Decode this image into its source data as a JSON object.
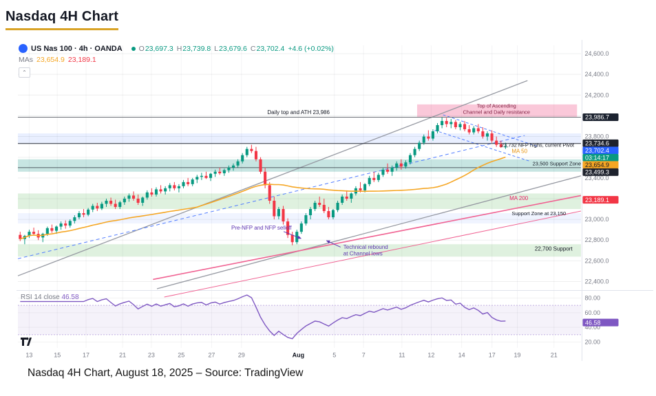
{
  "page": {
    "title": "Nasdaq 4H Chart",
    "caption": "Nasdaq 4H Chart, August 18, 2025 – Source: TradingView",
    "accent_color": "#D9A326"
  },
  "legend": {
    "symbol": "US Nas 100 · 4h · OANDA",
    "ohlc": {
      "o_label": "O",
      "o": "23,697.3",
      "h_label": "H",
      "h": "23,739.8",
      "l_label": "L",
      "l": "23,679.6",
      "c_label": "C",
      "c": "23,702.4",
      "change": "+4.6 (+0.02%)"
    },
    "mas_label": "MAs",
    "ma50_value": "23,654.9",
    "ma200_value": "23,189.1"
  },
  "rsi_pane": {
    "label": "RSI 14 close",
    "value": "46.58"
  },
  "chart_data": {
    "type": "candlestick",
    "title": "Nasdaq 4H Chart",
    "symbol": "US Nas 100",
    "interval": "4h",
    "exchange": "OANDA",
    "ath": 23986,
    "colors": {
      "up": "#089981",
      "down": "#F23645",
      "ma50": "#F5A623",
      "ma200": "#F06292",
      "rsi": "#7E57C2",
      "axis_text": "#787b86",
      "current_price": "#2962FF"
    },
    "price_axis_ticks": [
      {
        "value": 24600,
        "label": "24,600.0"
      },
      {
        "value": 24400,
        "label": "24,400.0"
      },
      {
        "value": 24200,
        "label": "24,200.0"
      },
      {
        "value": 24000,
        "label": "24,000.0"
      },
      {
        "value": 23800,
        "label": "23,800.0"
      },
      {
        "value": 23600,
        "label": "23,600.0"
      },
      {
        "value": 23400,
        "label": "23,400.0"
      },
      {
        "value": 23200,
        "label": "23,200.0"
      },
      {
        "value": 23000,
        "label": "23,000.0"
      },
      {
        "value": 22800,
        "label": "22,800.0"
      },
      {
        "value": 22600,
        "label": "22,600.0"
      },
      {
        "value": 22400,
        "label": "22,400.0"
      }
    ],
    "rsi_axis_ticks": [
      {
        "value": 80,
        "label": "80.00"
      },
      {
        "value": 60,
        "label": "60.00"
      },
      {
        "value": 40,
        "label": "40.00"
      },
      {
        "value": 20,
        "label": "20.00"
      }
    ],
    "time_labels": [
      {
        "label": "13",
        "pos": 0.02
      },
      {
        "label": "15",
        "pos": 0.07
      },
      {
        "label": "17",
        "pos": 0.121
      },
      {
        "label": "21",
        "pos": 0.186
      },
      {
        "label": "23",
        "pos": 0.237
      },
      {
        "label": "25",
        "pos": 0.29
      },
      {
        "label": "27",
        "pos": 0.344
      },
      {
        "label": "29",
        "pos": 0.397
      },
      {
        "label": "Aug",
        "pos": 0.498,
        "strong": true
      },
      {
        "label": "5",
        "pos": 0.562
      },
      {
        "label": "7",
        "pos": 0.614
      },
      {
        "label": "11",
        "pos": 0.682
      },
      {
        "label": "12",
        "pos": 0.734
      },
      {
        "label": "14",
        "pos": 0.788
      },
      {
        "label": "17",
        "pos": 0.842
      },
      {
        "label": "19",
        "pos": 0.887
      },
      {
        "label": "21",
        "pos": 0.952
      }
    ],
    "zones": [
      {
        "name": "top-of-channel-resistance",
        "price_from": 23990,
        "price_to": 24110,
        "x0": 0.709,
        "x1": 0.993,
        "color": "rgba(240,98,146,0.35)"
      },
      {
        "name": "pivot-band",
        "price_from": 23730,
        "price_to": 23830,
        "x0": 0,
        "x1": 1,
        "color": "rgba(41,98,255,0.10)"
      },
      {
        "name": "support-23500",
        "price_from": 23460,
        "price_to": 23580,
        "x0": 0,
        "x1": 1,
        "color": "rgba(0,137,123,0.22)"
      },
      {
        "name": "support-23150",
        "price_from": 23100,
        "price_to": 23250,
        "x0": 0,
        "x1": 1,
        "color": "rgba(76,175,80,0.18)"
      },
      {
        "name": "minor-band-23000",
        "price_from": 22960,
        "price_to": 23060,
        "x0": 0,
        "x1": 1,
        "color": "rgba(41,98,255,0.07)"
      },
      {
        "name": "support-22700",
        "price_from": 22640,
        "price_to": 22760,
        "x0": 0,
        "x1": 1,
        "color": "rgba(76,175,80,0.18)"
      }
    ],
    "hlines": [
      {
        "name": "ath-line",
        "price": 23986,
        "color": "#6b6f76",
        "width": 1
      },
      {
        "name": "pivot-line",
        "price": 23732,
        "color": "#2a2e39",
        "width": 1
      },
      {
        "name": "level-23499",
        "price": 23499.3,
        "color": "#2a2e39",
        "width": 0.8
      }
    ],
    "trendlines": [
      {
        "name": "ascending-channel-upper",
        "x1": 0,
        "p1": 22455,
        "x2": 0.905,
        "p2": 24340,
        "color": "#9598a1",
        "width": 1.3
      },
      {
        "name": "ascending-channel-lower",
        "x1": 0.247,
        "p1": 22330,
        "x2": 1.0,
        "p2": 23420,
        "color": "#9598a1",
        "width": 1.3
      },
      {
        "name": "channel-midline",
        "x1": 0,
        "p1": 22620,
        "x2": 0.9,
        "p2": 23810,
        "color": "#4f7bff",
        "width": 1,
        "dash": "5,4"
      },
      {
        "name": "ma-200",
        "x1": 0.24,
        "p1": 22420,
        "x2": 1.0,
        "p2": 23230,
        "color": "#F06292",
        "width": 1.6
      },
      {
        "name": "parallel-support",
        "x1": 0.26,
        "p1": 22250,
        "x2": 1.0,
        "p2": 23080,
        "color": "#F06292",
        "width": 1
      },
      {
        "name": "falling-channel-upper",
        "x1": 0.755,
        "p1": 24010,
        "x2": 0.925,
        "p2": 23700,
        "color": "#4f7bff",
        "width": 1,
        "dash": "4,3"
      },
      {
        "name": "falling-channel-lower",
        "x1": 0.74,
        "p1": 23860,
        "x2": 0.91,
        "p2": 23560,
        "color": "#4f7bff",
        "width": 1,
        "dash": "4,3"
      }
    ],
    "annotations": [
      {
        "x": 0.443,
        "p": 24015,
        "lines": [
          "Daily top and ATH 23,986"
        ],
        "color": "#131722",
        "size": 8
      },
      {
        "x": 0.85,
        "p": 24078,
        "lines": [
          "Top of Ascending",
          "Channel and Daily resistance"
        ],
        "color": "#7f1d3f",
        "size": 7.5,
        "anchor": "middle"
      },
      {
        "x": 0.858,
        "p": 23700,
        "lines": [
          "23,732 NFP highs, current Pivot"
        ],
        "color": "#131722",
        "size": 7.5
      },
      {
        "x": 0.877,
        "p": 23640,
        "lines": [
          "MA 50"
        ],
        "color": "#E8930C",
        "size": 8
      },
      {
        "x": 0.914,
        "p": 23520,
        "lines": [
          "23,500 Support Zone"
        ],
        "color": "#131722",
        "size": 7.5
      },
      {
        "x": 0.873,
        "p": 23185,
        "lines": [
          "MA 200"
        ],
        "color": "#E91E63",
        "size": 8
      },
      {
        "x": 0.877,
        "p": 23040,
        "lines": [
          "Support Zone at 23,150"
        ],
        "color": "#131722",
        "size": 7.5
      },
      {
        "x": 0.379,
        "p": 22900,
        "lines": [
          "Pre-NFP and NFP selloff"
        ],
        "color": "#5E35B1",
        "size": 8,
        "arrow": {
          "x1": 0.472,
          "p1": 22882,
          "x2": 0.503,
          "p2": 22815
        }
      },
      {
        "x": 0.578,
        "p": 22715,
        "lines": [
          "Technical rebound",
          "at Channel lows"
        ],
        "color": "#5E35B1",
        "size": 8,
        "arrow": {
          "x1": 0.573,
          "p1": 22732,
          "x2": 0.548,
          "p2": 22795
        }
      },
      {
        "x": 0.918,
        "p": 22700,
        "lines": [
          "22,700 Support"
        ],
        "color": "#131722",
        "size": 8
      }
    ],
    "axis_badges": [
      {
        "text": "23,986.7",
        "price": 23986.7,
        "bg": "#1c2330",
        "fg": "#ffffff"
      },
      {
        "text": "23,734.6",
        "price": 23734.6,
        "bg": "#1e222d",
        "fg": "#ffffff"
      },
      {
        "text": "23,702.4",
        "price": 23702.4,
        "bg": "#2962FF",
        "fg": "#ffffff"
      },
      {
        "text": "03:14:17",
        "price": 23688,
        "bg": "#089981",
        "fg": "#ffffff"
      },
      {
        "text": "23,654.9",
        "price": 23654.9,
        "bg": "#F5A623",
        "fg": "#131722"
      },
      {
        "text": "23,499.3",
        "price": 23499.3,
        "bg": "#1e222d",
        "fg": "#ffffff"
      },
      {
        "text": "23,189.1",
        "price": 23189.1,
        "bg": "#F23645",
        "fg": "#ffffff"
      },
      {
        "text": "46.58",
        "pane": "rsi",
        "value": 46.58,
        "bg": "#7E57C2",
        "fg": "#ffffff"
      }
    ],
    "rsi": {
      "period": 14,
      "band": [
        30,
        70
      ],
      "last": 46.58
    },
    "ma50_window": 40,
    "candles": [
      [
        22850,
        22880,
        22790,
        22810
      ],
      [
        22810,
        22850,
        22760,
        22840
      ],
      [
        22840,
        22900,
        22820,
        22880
      ],
      [
        22880,
        22920,
        22850,
        22860
      ],
      [
        22860,
        22895,
        22800,
        22825
      ],
      [
        22825,
        22870,
        22780,
        22860
      ],
      [
        22860,
        22930,
        22840,
        22915
      ],
      [
        22915,
        22950,
        22870,
        22890
      ],
      [
        22890,
        22940,
        22860,
        22930
      ],
      [
        22930,
        22980,
        22900,
        22960
      ],
      [
        22960,
        22990,
        22910,
        22940
      ],
      [
        22940,
        23000,
        22920,
        22985
      ],
      [
        22985,
        23040,
        22960,
        23020
      ],
      [
        23020,
        23080,
        23000,
        23060
      ],
      [
        23060,
        23100,
        23020,
        23045
      ],
      [
        23045,
        23110,
        23030,
        23095
      ],
      [
        23095,
        23150,
        23070,
        23130
      ],
      [
        23130,
        23160,
        23080,
        23105
      ],
      [
        23105,
        23170,
        23090,
        23150
      ],
      [
        23150,
        23200,
        23120,
        23180
      ],
      [
        23180,
        23210,
        23130,
        23150
      ],
      [
        23150,
        23190,
        23100,
        23120
      ],
      [
        23120,
        23180,
        23100,
        23165
      ],
      [
        23165,
        23220,
        23140,
        23200
      ],
      [
        23200,
        23250,
        23170,
        23230
      ],
      [
        23230,
        23270,
        23180,
        23200
      ],
      [
        23200,
        23240,
        23140,
        23160
      ],
      [
        23160,
        23220,
        23130,
        23210
      ],
      [
        23210,
        23280,
        23190,
        23260
      ],
      [
        23260,
        23300,
        23220,
        23240
      ],
      [
        23240,
        23310,
        23220,
        23290
      ],
      [
        23290,
        23330,
        23250,
        23270
      ],
      [
        23270,
        23320,
        23240,
        23300
      ],
      [
        23300,
        23350,
        23270,
        23330
      ],
      [
        23330,
        23360,
        23280,
        23300
      ],
      [
        23300,
        23340,
        23260,
        23320
      ],
      [
        23320,
        23380,
        23300,
        23360
      ],
      [
        23360,
        23400,
        23320,
        23340
      ],
      [
        23340,
        23400,
        23320,
        23385
      ],
      [
        23385,
        23430,
        23350,
        23410
      ],
      [
        23410,
        23450,
        23380,
        23420
      ],
      [
        23420,
        23460,
        23390,
        23400
      ],
      [
        23400,
        23450,
        23370,
        23440
      ],
      [
        23440,
        23480,
        23410,
        23460
      ],
      [
        23460,
        23500,
        23430,
        23445
      ],
      [
        23445,
        23490,
        23420,
        23475
      ],
      [
        23475,
        23520,
        23450,
        23500
      ],
      [
        23500,
        23540,
        23470,
        23520
      ],
      [
        23520,
        23580,
        23500,
        23560
      ],
      [
        23560,
        23640,
        23540,
        23620
      ],
      [
        23620,
        23700,
        23600,
        23680
      ],
      [
        23680,
        23720,
        23640,
        23660
      ],
      [
        23660,
        23700,
        23560,
        23580
      ],
      [
        23580,
        23600,
        23440,
        23460
      ],
      [
        23460,
        23500,
        23300,
        23330
      ],
      [
        23330,
        23360,
        23150,
        23180
      ],
      [
        23180,
        23220,
        23000,
        23030
      ],
      [
        23030,
        23120,
        23000,
        23100
      ],
      [
        23100,
        23130,
        22950,
        22980
      ],
      [
        22980,
        23010,
        22820,
        22850
      ],
      [
        22850,
        22880,
        22750,
        22780
      ],
      [
        22780,
        22900,
        22760,
        22880
      ],
      [
        22880,
        22980,
        22860,
        22960
      ],
      [
        22960,
        23060,
        22940,
        23040
      ],
      [
        23040,
        23120,
        23000,
        23100
      ],
      [
        23100,
        23180,
        23080,
        23160
      ],
      [
        23160,
        23220,
        23120,
        23140
      ],
      [
        23140,
        23200,
        23060,
        23080
      ],
      [
        23080,
        23120,
        23000,
        23020
      ],
      [
        23020,
        23100,
        23000,
        23090
      ],
      [
        23090,
        23180,
        23070,
        23160
      ],
      [
        23160,
        23240,
        23140,
        23220
      ],
      [
        23220,
        23280,
        23180,
        23200
      ],
      [
        23200,
        23260,
        23160,
        23250
      ],
      [
        23250,
        23320,
        23230,
        23300
      ],
      [
        23300,
        23360,
        23260,
        23280
      ],
      [
        23280,
        23350,
        23260,
        23340
      ],
      [
        23340,
        23420,
        23320,
        23400
      ],
      [
        23400,
        23460,
        23360,
        23380
      ],
      [
        23380,
        23450,
        23360,
        23430
      ],
      [
        23430,
        23500,
        23410,
        23480
      ],
      [
        23480,
        23540,
        23440,
        23460
      ],
      [
        23460,
        23520,
        23420,
        23500
      ],
      [
        23500,
        23560,
        23470,
        23540
      ],
      [
        23540,
        23580,
        23480,
        23510
      ],
      [
        23510,
        23570,
        23490,
        23550
      ],
      [
        23550,
        23640,
        23530,
        23620
      ],
      [
        23620,
        23700,
        23600,
        23680
      ],
      [
        23680,
        23760,
        23660,
        23740
      ],
      [
        23740,
        23820,
        23720,
        23800
      ],
      [
        23800,
        23860,
        23760,
        23780
      ],
      [
        23780,
        23870,
        23760,
        23850
      ],
      [
        23850,
        23930,
        23830,
        23910
      ],
      [
        23910,
        23986,
        23880,
        23950
      ],
      [
        23950,
        23980,
        23890,
        23920
      ],
      [
        23920,
        23970,
        23880,
        23940
      ],
      [
        23940,
        23960,
        23870,
        23890
      ],
      [
        23890,
        23940,
        23860,
        23920
      ],
      [
        23920,
        23950,
        23850,
        23870
      ],
      [
        23870,
        23910,
        23820,
        23840
      ],
      [
        23840,
        23900,
        23820,
        23880
      ],
      [
        23880,
        23920,
        23830,
        23850
      ],
      [
        23850,
        23890,
        23780,
        23800
      ],
      [
        23800,
        23850,
        23760,
        23830
      ],
      [
        23830,
        23860,
        23740,
        23760
      ],
      [
        23760,
        23800,
        23700,
        23720
      ],
      [
        23725,
        23760,
        23690,
        23698
      ],
      [
        23697,
        23740,
        23680,
        23702
      ]
    ]
  }
}
